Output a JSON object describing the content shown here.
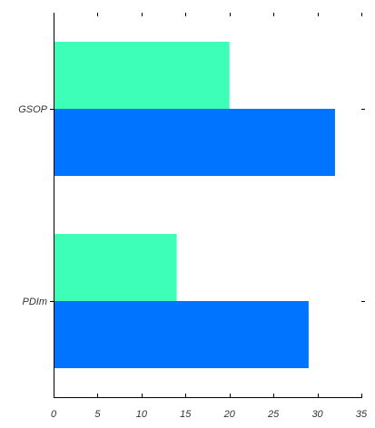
{
  "chart_data": {
    "type": "bar",
    "orientation": "horizontal",
    "categories": [
      "GSOP",
      "PDIm"
    ],
    "series": [
      {
        "values": [
          20,
          14
        ],
        "color": "#3dffb8"
      },
      {
        "values": [
          32,
          29
        ],
        "color": "#0073ff"
      }
    ],
    "xlim": [
      0,
      35
    ],
    "xticks": [
      0,
      5,
      10,
      15,
      20,
      25,
      30,
      35
    ],
    "title": "",
    "xlabel": "",
    "ylabel": "",
    "grid": false,
    "legend": "none"
  }
}
